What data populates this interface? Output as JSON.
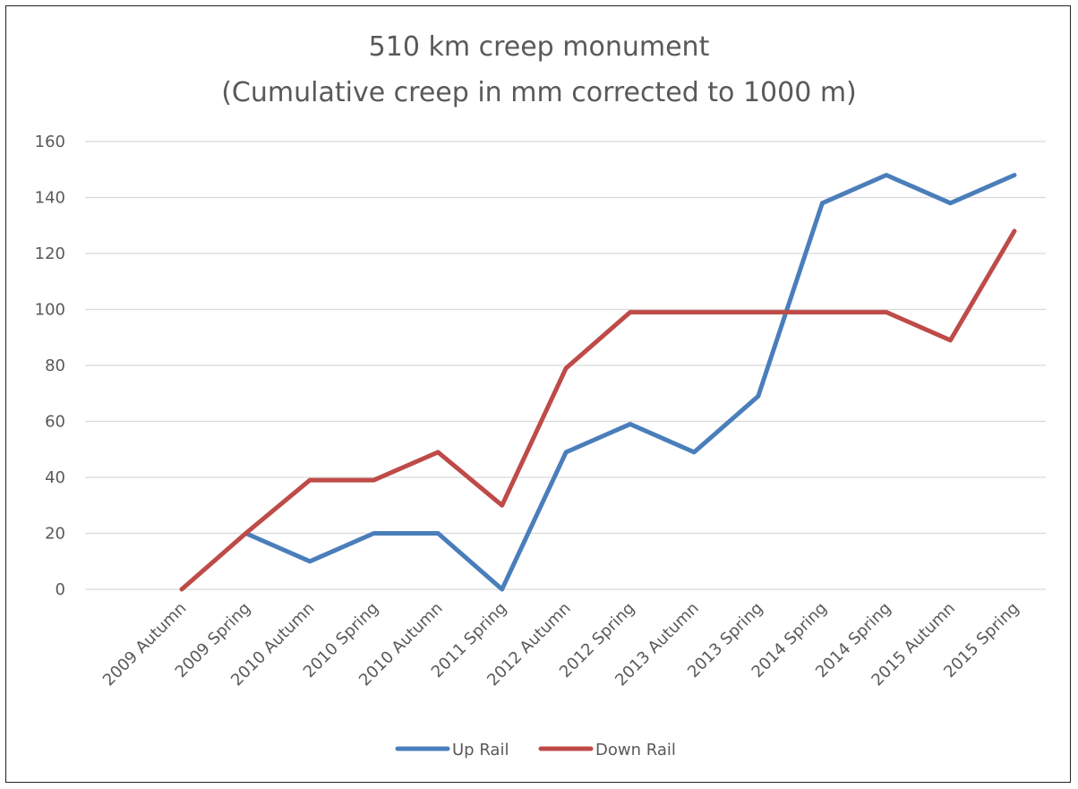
{
  "chart_data": {
    "type": "line",
    "title": "510 km creep monument",
    "subtitle": "(Cumulative creep in mm corrected to 1000 m)",
    "xlabel": "",
    "ylabel": "",
    "ylim": [
      0,
      160
    ],
    "yticks": [
      0,
      20,
      40,
      60,
      80,
      100,
      120,
      140,
      160
    ],
    "grid": true,
    "legend_position": "bottom",
    "categories": [
      "2009 Autumn",
      "2009 Spring",
      "2010 Autumn",
      "2010 Spring",
      "2010 Autumn",
      "2011 Spring",
      "2012 Autumn",
      "2012 Spring",
      "2013 Autumn",
      "2013 Spring",
      "2014 Spring",
      "2014 Spring",
      "2015 Autumn",
      "2015 Spring"
    ],
    "series": [
      {
        "name": "Up Rail",
        "color": "#4a7ebb",
        "values": [
          null,
          20,
          10,
          20,
          20,
          0,
          49,
          59,
          49,
          69,
          138,
          148,
          138,
          148
        ]
      },
      {
        "name": "Down Rail",
        "color": "#be4b48",
        "values": [
          0,
          20,
          39,
          39,
          49,
          30,
          79,
          99,
          99,
          99,
          99,
          99,
          89,
          128
        ]
      }
    ]
  }
}
